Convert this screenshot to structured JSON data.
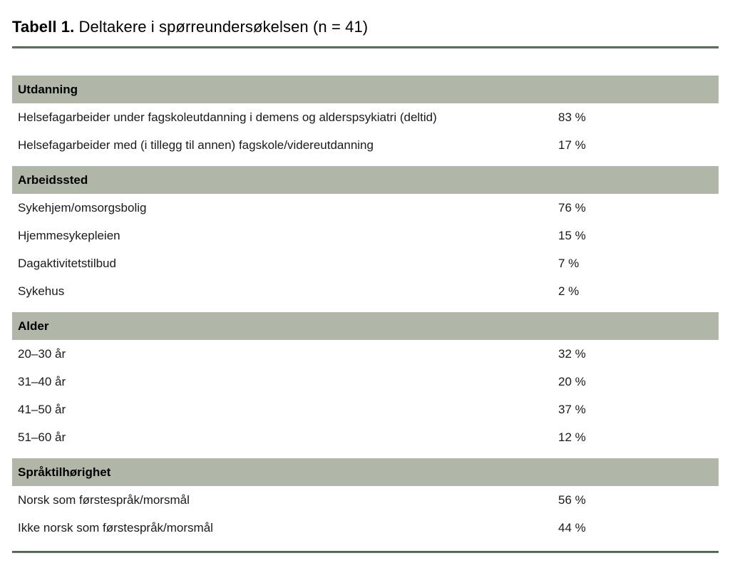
{
  "caption": {
    "number": "Tabell 1.",
    "text": "Deltakere i spørreundersøkelsen (n = 41)"
  },
  "colors": {
    "accent_green": "#567a54",
    "section_header_bg": "#b0b6a8",
    "text": "#1a1a1a"
  },
  "table": {
    "sections": [
      {
        "header": "Utdanning",
        "rows": [
          {
            "label": "Helsefagarbeider under fagskoleutdanning i demens og alderspsykiatri (deltid)",
            "value": "83 %"
          },
          {
            "label": "Helsefagarbeider med (i tillegg til annen) fagskole/videreutdanning",
            "value": "17 %"
          }
        ]
      },
      {
        "header": "Arbeidssted",
        "rows": [
          {
            "label": "Sykehjem/omsorgsbolig",
            "value": "76 %"
          },
          {
            "label": "Hjemmesykepleien",
            "value": "15 %"
          },
          {
            "label": "Dagaktivitetstilbud",
            "value": "7 %"
          },
          {
            "label": "Sykehus",
            "value": "2 %"
          }
        ]
      },
      {
        "header": "Alder",
        "rows": [
          {
            "label": "20–30 år",
            "value": "32 %"
          },
          {
            "label": "31–40 år",
            "value": "20 %"
          },
          {
            "label": "41–50 år",
            "value": "37 %"
          },
          {
            "label": "51–60 år",
            "value": "12 %"
          }
        ]
      },
      {
        "header": "Språktilhørighet",
        "rows": [
          {
            "label": "Norsk som førstespråk/morsmål",
            "value": "56 %"
          },
          {
            "label": "Ikke norsk som førstespråk/morsmål",
            "value": "44 %"
          }
        ]
      }
    ]
  }
}
